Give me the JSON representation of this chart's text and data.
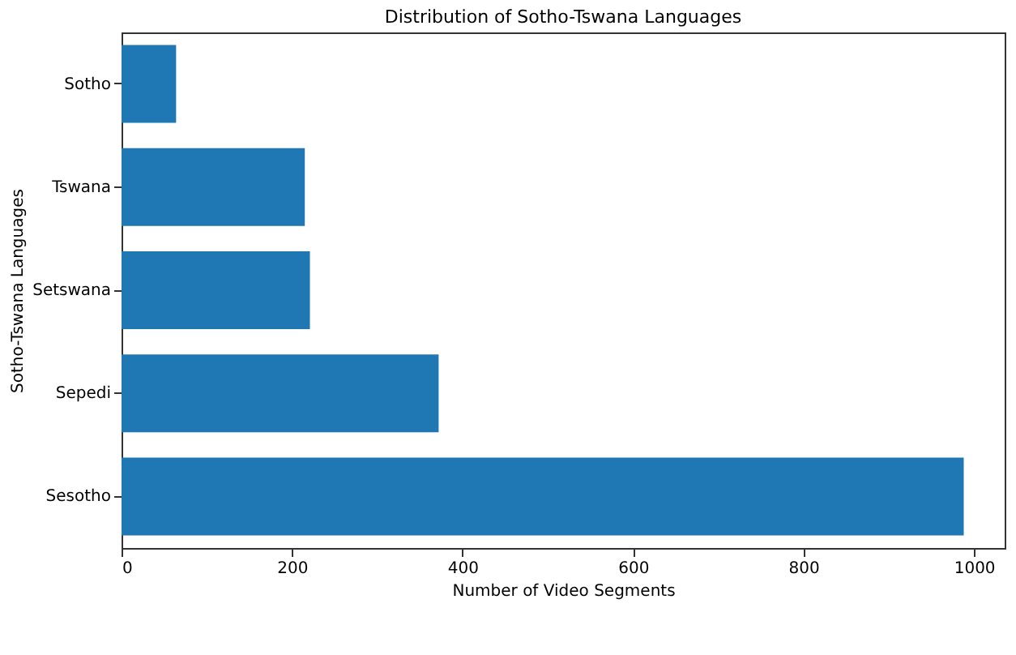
{
  "chart_data": {
    "type": "bar",
    "orientation": "horizontal",
    "title": "Distribution of Sotho-Tswana Languages",
    "xlabel": "Number of Video Segments",
    "ylabel": "Sotho-Tswana Languages",
    "categories": [
      "Sotho",
      "Tswana",
      "Setswana",
      "Sepedi",
      "Sesotho"
    ],
    "values": [
      64,
      215,
      221,
      372,
      988
    ],
    "color": "#1f77b4",
    "xlim": [
      0,
      1036
    ],
    "xticks": [
      0,
      200,
      400,
      600,
      800,
      1000
    ],
    "grid": false
  }
}
